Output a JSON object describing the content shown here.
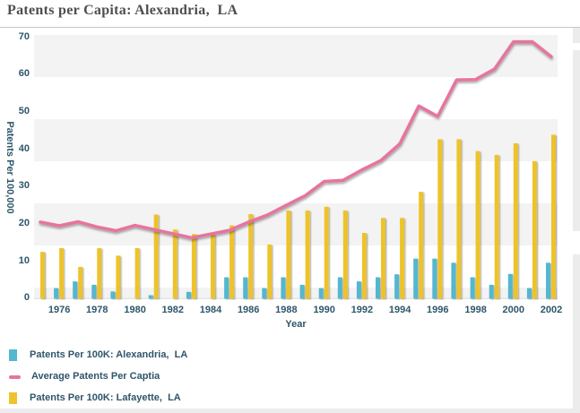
{
  "chart_data": {
    "type": "combo-bar-line",
    "title": "Patents per Capita: Alexandria,  LA",
    "xlabel": "Year",
    "ylabel": "Patents Per 100,000",
    "ylim": [
      0,
      70
    ],
    "y_ticks": [
      0,
      10,
      20,
      30,
      40,
      50,
      60,
      70
    ],
    "x_tick_step_note": "labels shown every even year",
    "grid": "alternating-horizontal-bands",
    "band_color": "#f3f3f3",
    "axis_text_color": "#2d566b",
    "legend_position": "bottom-left",
    "x": [
      1975,
      1976,
      1977,
      1978,
      1979,
      1980,
      1981,
      1982,
      1983,
      1984,
      1985,
      1986,
      1987,
      1988,
      1989,
      1990,
      1991,
      1992,
      1993,
      1994,
      1995,
      1996,
      1997,
      1998,
      1999,
      2000,
      2001,
      2002
    ],
    "series": [
      {
        "name": "Patents Per 100K: Alexandria,  LA",
        "key": "alexandria",
        "type": "bar",
        "color": "#53b7cf",
        "values": [
          0,
          2.8,
          4.6,
          3.7,
          1.9,
          0,
          0.9,
          0,
          1.8,
          0,
          5.7,
          5.7,
          2.8,
          5.7,
          3.7,
          2.8,
          5.7,
          4.6,
          5.7,
          6.5,
          10.7,
          10.7,
          9.6,
          5.7,
          3.7,
          6.6,
          2.8,
          9.6
        ]
      },
      {
        "name": "Average Patents Per Captia",
        "key": "average",
        "type": "line",
        "color": "#e8739f",
        "values": [
          20.5,
          19.5,
          20.6,
          19.2,
          18.2,
          19.6,
          18.5,
          17.4,
          16.3,
          17.3,
          18.3,
          20.5,
          22.4,
          25.0,
          27.6,
          31.4,
          31.7,
          34.5,
          37.0,
          41.5,
          51.6,
          48.8,
          58.6,
          58.7,
          61.5,
          68.8,
          68.8,
          64.8
        ]
      },
      {
        "name": "Patents Per 100K: Lafayette,  LA",
        "key": "lafayette",
        "type": "bar",
        "color": "#eec32b",
        "values": [
          12.5,
          13.5,
          8.5,
          13.5,
          11.5,
          13.5,
          22.5,
          18.5,
          17.3,
          17.1,
          19.6,
          22.6,
          14.5,
          23.6,
          23.6,
          24.6,
          23.6,
          17.6,
          21.6,
          21.6,
          28.6,
          42.7,
          42.7,
          39.5,
          38.5,
          41.6,
          36.8,
          43.9
        ]
      }
    ]
  }
}
